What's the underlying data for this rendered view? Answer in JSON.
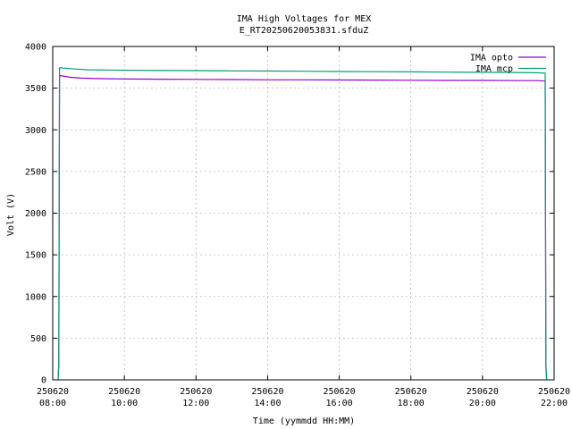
{
  "chart_data": {
    "type": "line",
    "title": "IMA High Voltages for MEX",
    "subtitle": "E_RT20250620053831.sfduZ",
    "xlabel": "Time (yymmdd HH:MM)",
    "ylabel": "Volt (V)",
    "x_unit": "hours of day 2025-06-20",
    "xlim": [
      8.0,
      22.0
    ],
    "ylim": [
      0,
      4000
    ],
    "y_ticks": [
      0,
      500,
      1000,
      1500,
      2000,
      2500,
      3000,
      3500,
      4000
    ],
    "x_ticks": [
      {
        "x": 8,
        "date": "250620",
        "time": "08:00"
      },
      {
        "x": 10,
        "date": "250620",
        "time": "10:00"
      },
      {
        "x": 12,
        "date": "250620",
        "time": "12:00"
      },
      {
        "x": 14,
        "date": "250620",
        "time": "14:00"
      },
      {
        "x": 16,
        "date": "250620",
        "time": "16:00"
      },
      {
        "x": 18,
        "date": "250620",
        "time": "18:00"
      },
      {
        "x": 20,
        "date": "250620",
        "time": "20:00"
      },
      {
        "x": 22,
        "date": "250620",
        "time": "22:00"
      }
    ],
    "grid": true,
    "legend_position": "top-right",
    "series": [
      {
        "name": "IMA opto",
        "color": "#9400d3",
        "x": [
          8.15,
          8.17,
          8.19,
          8.21,
          8.3,
          8.5,
          8.8,
          9.2,
          10,
          11,
          12,
          13,
          14,
          15,
          16,
          17,
          18,
          19,
          20,
          21,
          21.5,
          21.75,
          21.77,
          21.79
        ],
        "y": [
          0,
          180,
          3640,
          3650,
          3645,
          3630,
          3620,
          3615,
          3610,
          3608,
          3605,
          3603,
          3600,
          3600,
          3598,
          3597,
          3595,
          3593,
          3592,
          3590,
          3590,
          3585,
          200,
          0
        ]
      },
      {
        "name": "IMA mcp",
        "color": "#009e73",
        "x": [
          8.15,
          8.17,
          8.19,
          8.21,
          8.3,
          8.6,
          9.0,
          10,
          11,
          12,
          13,
          14,
          15,
          16,
          17,
          18,
          19,
          20,
          21,
          21.5,
          21.75,
          21.77,
          21.79
        ],
        "y": [
          0,
          200,
          3740,
          3745,
          3740,
          3730,
          3720,
          3715,
          3712,
          3710,
          3707,
          3705,
          3703,
          3700,
          3698,
          3695,
          3692,
          3690,
          3688,
          3685,
          3680,
          150,
          0
        ]
      }
    ]
  }
}
